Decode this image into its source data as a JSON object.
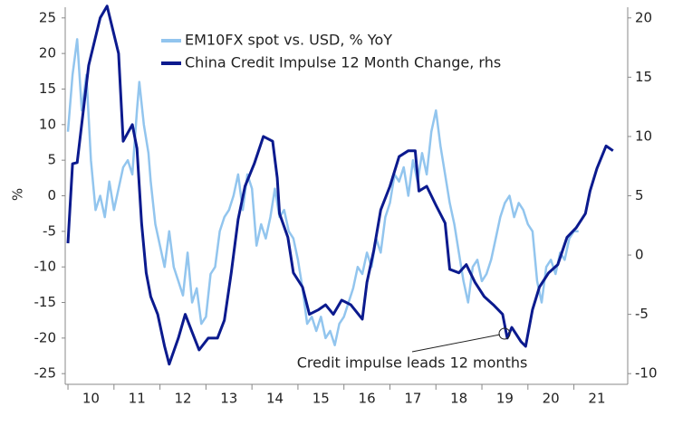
{
  "chart_data": {
    "type": "line",
    "y_label": "%",
    "annotation": "Credit impulse leads 12 months",
    "xlim": [
      2009.94,
      2022.17
    ],
    "xticks": [
      {
        "value": 2010,
        "label": "10"
      },
      {
        "value": 2011,
        "label": "11"
      },
      {
        "value": 2012,
        "label": "12"
      },
      {
        "value": 2013,
        "label": "13"
      },
      {
        "value": 2014,
        "label": "14"
      },
      {
        "value": 2015,
        "label": "15"
      },
      {
        "value": 2016,
        "label": "16"
      },
      {
        "value": 2017,
        "label": "17"
      },
      {
        "value": 2018,
        "label": "18"
      },
      {
        "value": 2019,
        "label": "19"
      },
      {
        "value": 2020,
        "label": "20"
      },
      {
        "value": 2021,
        "label": "21"
      }
    ],
    "ylim": [
      -26.5,
      26.5
    ],
    "yticks": [
      25,
      20,
      15,
      10,
      5,
      0,
      -5,
      -10,
      -15,
      -20,
      -25
    ],
    "y2lim": [
      -10.9,
      20.9
    ],
    "y2ticks": [
      20,
      15,
      10,
      5,
      0,
      -5,
      -10
    ],
    "series": [
      {
        "name": "EM10FX spot vs. USD, % YoY",
        "color": "#92c5ee",
        "x": [
          2010.0,
          2010.1,
          2010.2,
          2010.3,
          2010.4,
          2010.5,
          2010.6,
          2010.7,
          2010.8,
          2010.9,
          2011.0,
          2011.1,
          2011.2,
          2011.3,
          2011.4,
          2011.5,
          2011.55,
          2011.65,
          2011.75,
          2011.8,
          2011.9,
          2012.0,
          2012.1,
          2012.2,
          2012.3,
          2012.4,
          2012.5,
          2012.6,
          2012.7,
          2012.8,
          2012.9,
          2013.0,
          2013.1,
          2013.2,
          2013.3,
          2013.4,
          2013.5,
          2013.6,
          2013.7,
          2013.8,
          2013.9,
          2014.0,
          2014.1,
          2014.2,
          2014.3,
          2014.4,
          2014.5,
          2014.6,
          2014.7,
          2014.8,
          2014.9,
          2015.0,
          2015.1,
          2015.2,
          2015.3,
          2015.4,
          2015.5,
          2015.6,
          2015.7,
          2015.8,
          2015.9,
          2016.0,
          2016.1,
          2016.2,
          2016.3,
          2016.4,
          2016.5,
          2016.6,
          2016.7,
          2016.8,
          2016.9,
          2017.0,
          2017.1,
          2017.2,
          2017.3,
          2017.4,
          2017.5,
          2017.6,
          2017.7,
          2017.8,
          2017.9,
          2018.0,
          2018.1,
          2018.2,
          2018.3,
          2018.4,
          2018.5,
          2018.6,
          2018.7,
          2018.8,
          2018.9,
          2019.0,
          2019.1,
          2019.2,
          2019.3,
          2019.4,
          2019.5,
          2019.6,
          2019.7,
          2019.8,
          2019.9,
          2020.0,
          2020.1,
          2020.2,
          2020.3,
          2020.4,
          2020.5,
          2020.6,
          2020.7,
          2020.8,
          2020.9,
          2021.0,
          2021.1
        ],
        "values": [
          9,
          17,
          22,
          12,
          17,
          5,
          -2,
          0,
          -3,
          2,
          -2,
          1,
          4,
          5,
          3,
          12,
          16,
          10,
          6,
          2,
          -4,
          -7,
          -10,
          -5,
          -10,
          -12,
          -14,
          -8,
          -15,
          -13,
          -18,
          -17,
          -11,
          -10,
          -5,
          -3,
          -2,
          0,
          3,
          -2,
          3,
          1,
          -7,
          -4,
          -6,
          -3,
          1,
          -3,
          -2,
          -5,
          -6,
          -9,
          -13,
          -18,
          -17,
          -19,
          -17,
          -20,
          -19,
          -21,
          -18,
          -17,
          -15,
          -13,
          -10,
          -11,
          -8,
          -10,
          -6,
          -8,
          -3,
          -1,
          3,
          2,
          4,
          0,
          5,
          2,
          6,
          3,
          9,
          12,
          7,
          3,
          -1,
          -4,
          -8,
          -12,
          -15,
          -10,
          -9,
          -12,
          -11,
          -9,
          -6,
          -3,
          -1,
          0,
          -3,
          -1,
          -2,
          -4,
          -5,
          -12,
          -15,
          -10,
          -9,
          -11,
          -8,
          -9,
          -6,
          -5,
          -5
        ]
      },
      {
        "name": "China Credit Impulse 12 Month Change, rhs",
        "color": "#0b1a8e",
        "axis": "y2",
        "x": [
          2010.0,
          2010.1,
          2010.2,
          2010.45,
          2010.7,
          2010.85,
          2011.1,
          2011.2,
          2011.4,
          2011.5,
          2011.6,
          2011.7,
          2011.8,
          2011.95,
          2012.1,
          2012.2,
          2012.4,
          2012.55,
          2012.7,
          2012.85,
          2013.05,
          2013.25,
          2013.4,
          2013.55,
          2013.7,
          2013.85,
          2014.05,
          2014.25,
          2014.45,
          2014.55,
          2014.6,
          2014.78,
          2014.9,
          2015.1,
          2015.25,
          2015.45,
          2015.6,
          2015.77,
          2015.95,
          2016.15,
          2016.4,
          2016.5,
          2016.65,
          2016.8,
          2017.0,
          2017.2,
          2017.4,
          2017.55,
          2017.63,
          2017.8,
          2018.0,
          2018.2,
          2018.3,
          2018.5,
          2018.66,
          2018.85,
          2019.05,
          2019.25,
          2019.45,
          2019.55,
          2019.65,
          2019.85,
          2019.95,
          2020.1,
          2020.25,
          2020.45,
          2020.65,
          2020.85,
          2021.05,
          2021.25,
          2021.35,
          2021.5,
          2021.7,
          2021.85
        ],
        "values": [
          1,
          7.7,
          7.8,
          16,
          20,
          21,
          17,
          9.6,
          11,
          9,
          2.7,
          -1.5,
          -3.5,
          -5,
          -7.7,
          -9.2,
          -7,
          -5,
          -6.5,
          -8,
          -7,
          -7,
          -5.5,
          -1.5,
          3,
          5.8,
          7.7,
          10,
          9.6,
          6.5,
          3.5,
          1.5,
          -1.5,
          -2.7,
          -5,
          -4.6,
          -4.2,
          -5,
          -3.8,
          -4.2,
          -5.4,
          -2.3,
          0.4,
          3.8,
          5.8,
          8.3,
          8.8,
          8.8,
          5.4,
          5.8,
          4.2,
          2.7,
          -1.2,
          -1.5,
          -0.8,
          -2.3,
          -3.5,
          -4.2,
          -5,
          -7,
          -6.1,
          -7.3,
          -7.7,
          -4.6,
          -2.7,
          -1.5,
          -0.8,
          1.5,
          2.3,
          3.5,
          5.4,
          7.3,
          9.2,
          8.8
        ]
      }
    ]
  }
}
